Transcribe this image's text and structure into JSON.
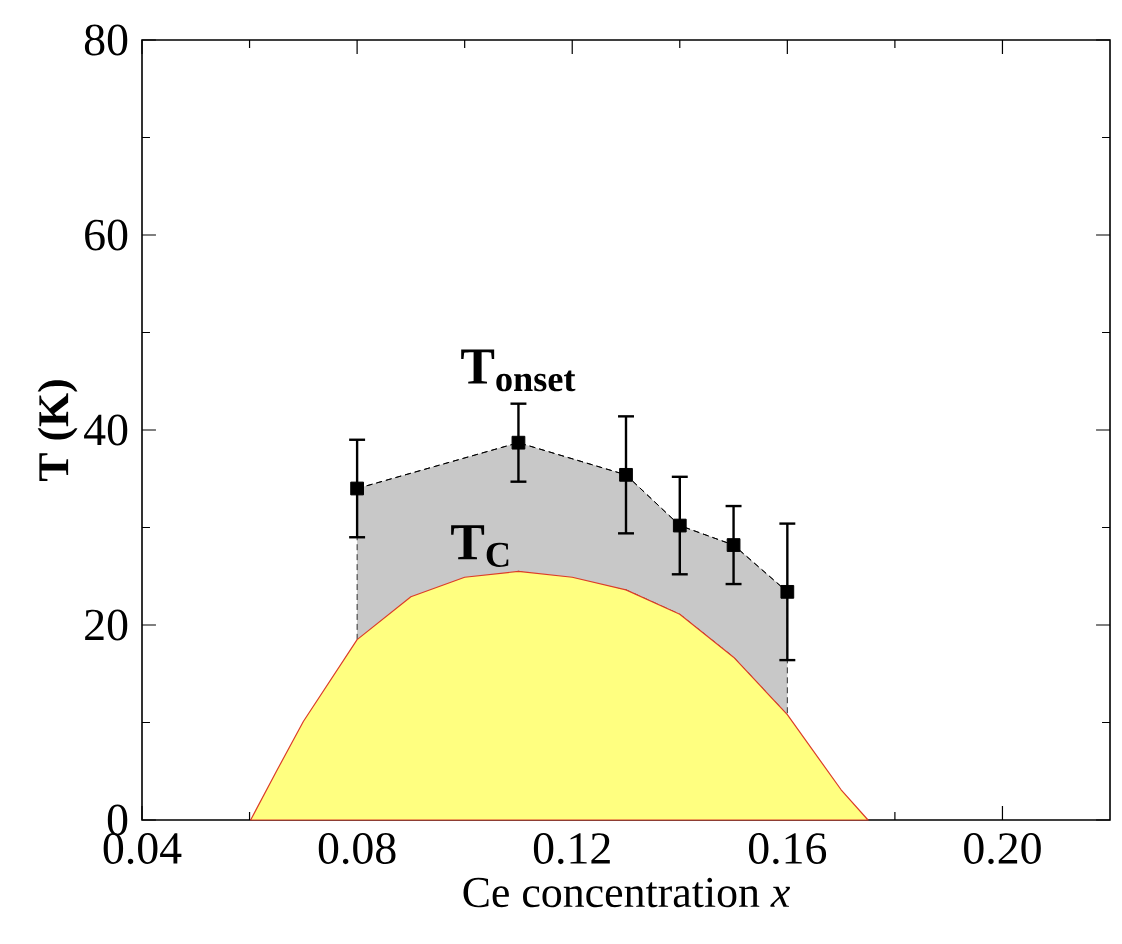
{
  "chart_data": {
    "type": "line",
    "xlabel": "Ce concentration *x*",
    "ylabel": "T (K)",
    "xlim": [
      0.04,
      0.22
    ],
    "ylim": [
      0,
      80
    ],
    "xticks": [
      0.04,
      0.08,
      0.12,
      0.16,
      {
        "value": 0.2,
        "label": "0.20"
      }
    ],
    "yticks": [
      0,
      20,
      40,
      60,
      80
    ],
    "grid": false,
    "series": [
      {
        "name": "T$_{C}$",
        "type": "area",
        "color": "#ffff80",
        "x": [
          0.0602,
          0.065,
          0.07,
          0.08,
          0.09,
          0.1,
          0.11,
          0.12,
          0.13,
          0.14,
          0.15,
          0.16,
          0.17,
          0.175
        ],
        "values": [
          0,
          5,
          10.1,
          18.5,
          22.9,
          24.9,
          25.5,
          24.9,
          23.6,
          21.1,
          16.7,
          10.8,
          3.1,
          0
        ],
        "marker": "none"
      },
      {
        "name": "T$_{onset}$",
        "color": "#000000",
        "x": [
          0.08,
          0.11,
          0.13,
          0.14,
          0.15,
          0.16
        ],
        "values": [
          34.0,
          38.7,
          35.4,
          30.2,
          28.2,
          23.4
        ],
        "errors": [
          5,
          4,
          6,
          5,
          4,
          7
        ],
        "lower": [
          18.5,
          25.5,
          23.6,
          21.1,
          16.7,
          10.8
        ],
        "upper": [
          34.0,
          38.7,
          35.4,
          30.2,
          28.2,
          23.4
        ],
        "marker": "square",
        "line_style": "dashed"
      }
    ]
  }
}
